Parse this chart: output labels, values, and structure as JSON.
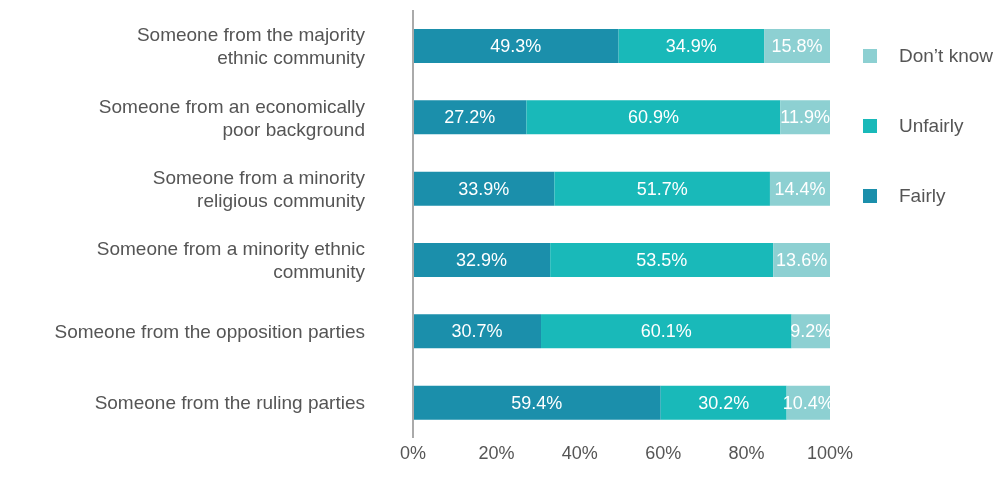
{
  "chart_data": {
    "type": "bar",
    "orientation": "horizontal",
    "stacked": true,
    "categories": [
      "Someone from the majority ethnic community",
      "Someone from an economically poor background",
      "Someone from a minority religious community",
      "Someone from a minority ethnic community",
      "Someone from the opposition parties",
      "Someone from the ruling parties"
    ],
    "series": [
      {
        "name": "Fairly",
        "color": "#1b8fab",
        "values": [
          49.3,
          27.2,
          33.9,
          32.9,
          30.7,
          59.4
        ],
        "value_labels": [
          "49.3%",
          "27.2%",
          "33.9%",
          "32.9%",
          "30.7%",
          "59.4%"
        ]
      },
      {
        "name": "Unfairly",
        "color": "#19b9b9",
        "values": [
          34.9,
          60.9,
          51.7,
          53.5,
          60.1,
          30.2
        ],
        "value_labels": [
          "34.9%",
          "60.9%",
          "51.7%",
          "53.5%",
          "60.1%",
          "30.2%"
        ]
      },
      {
        "name": "Don’t know",
        "color": "#8dd0d2",
        "values": [
          15.8,
          11.9,
          14.4,
          13.6,
          9.2,
          10.4
        ],
        "value_labels": [
          "15.8%",
          "11.9%",
          "14.4%",
          "13.6%",
          "9.2%",
          "10.4%"
        ]
      }
    ],
    "xlim": [
      0,
      100
    ],
    "xticks": [
      {
        "value": 0,
        "label": "0%"
      },
      {
        "value": 20,
        "label": "20%"
      },
      {
        "value": 40,
        "label": "40%"
      },
      {
        "value": 60,
        "label": "60%"
      },
      {
        "value": 80,
        "label": "80%"
      },
      {
        "value": 100,
        "label": "100%"
      }
    ],
    "legend": "top right"
  }
}
